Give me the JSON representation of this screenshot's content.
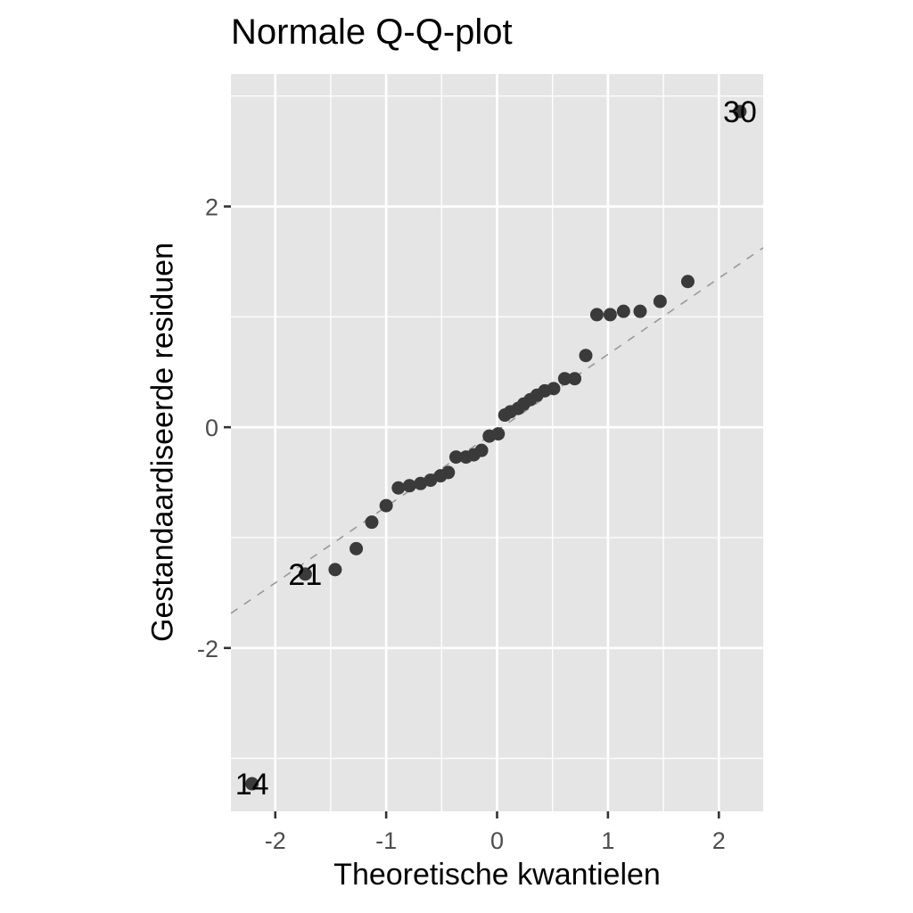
{
  "chart_data": {
    "type": "scatter",
    "title": "Normale Q-Q-plot",
    "xlabel": "Theoretische kwantielen",
    "ylabel": "Gestandaardiseerde residuen",
    "xlim": [
      -2.4,
      2.4
    ],
    "ylim": [
      -3.48,
      3.2
    ],
    "x_ticks": [
      -2,
      -1,
      0,
      1,
      2
    ],
    "y_ticks": [
      -2,
      0,
      2
    ],
    "y_minor_gridlines": [
      -3,
      -1,
      1,
      3
    ],
    "x_minor_gridlines": [
      -1.5,
      -0.5,
      0.5,
      1.5
    ],
    "grid": true,
    "legend": null,
    "reference_line": {
      "style": "dashed",
      "color": "#999999",
      "slope": 0.69,
      "intercept": -0.03
    },
    "points": [
      {
        "x": -2.21,
        "y": -3.23,
        "label": "14"
      },
      {
        "x": -1.73,
        "y": -1.33,
        "label": "21"
      },
      {
        "x": -1.46,
        "y": -1.29
      },
      {
        "x": -1.27,
        "y": -1.1
      },
      {
        "x": -1.13,
        "y": -0.86
      },
      {
        "x": -1.0,
        "y": -0.71
      },
      {
        "x": -0.89,
        "y": -0.55
      },
      {
        "x": -0.79,
        "y": -0.53
      },
      {
        "x": -0.69,
        "y": -0.51
      },
      {
        "x": -0.6,
        "y": -0.48
      },
      {
        "x": -0.51,
        "y": -0.44
      },
      {
        "x": -0.44,
        "y": -0.41
      },
      {
        "x": -0.37,
        "y": -0.27
      },
      {
        "x": -0.28,
        "y": -0.27
      },
      {
        "x": -0.21,
        "y": -0.25
      },
      {
        "x": -0.14,
        "y": -0.21
      },
      {
        "x": -0.07,
        "y": -0.08
      },
      {
        "x": 0.01,
        "y": -0.06
      },
      {
        "x": 0.07,
        "y": 0.11
      },
      {
        "x": 0.12,
        "y": 0.14
      },
      {
        "x": 0.19,
        "y": 0.17
      },
      {
        "x": 0.24,
        "y": 0.21
      },
      {
        "x": 0.3,
        "y": 0.25
      },
      {
        "x": 0.36,
        "y": 0.29
      },
      {
        "x": 0.43,
        "y": 0.33
      },
      {
        "x": 0.51,
        "y": 0.35
      },
      {
        "x": 0.61,
        "y": 0.44
      },
      {
        "x": 0.7,
        "y": 0.44
      },
      {
        "x": 0.8,
        "y": 0.65
      },
      {
        "x": 0.9,
        "y": 1.02
      },
      {
        "x": 1.02,
        "y": 1.02
      },
      {
        "x": 1.14,
        "y": 1.05
      },
      {
        "x": 1.29,
        "y": 1.05
      },
      {
        "x": 1.47,
        "y": 1.14
      },
      {
        "x": 1.72,
        "y": 1.32
      },
      {
        "x": 2.19,
        "y": 2.86,
        "label": "30"
      }
    ]
  },
  "colors": {
    "panel_background": "#e5e5e5",
    "grid": "#ffffff",
    "point": "#3a3a3a",
    "reference_line": "#999999",
    "tick_label": "#4d4d4d",
    "text": "#000000"
  }
}
